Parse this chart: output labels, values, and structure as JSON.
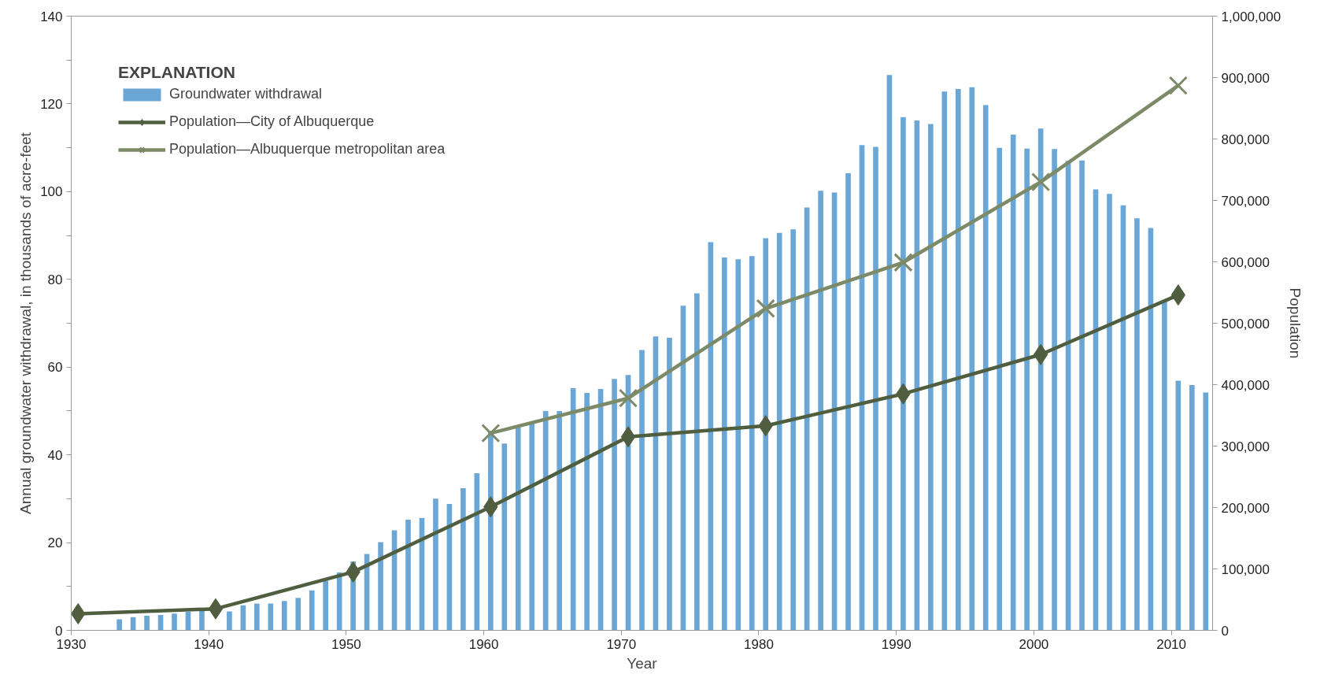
{
  "chart_data": {
    "type": "bar",
    "xlabel": "Year",
    "ylabel": "Annual groundwater withdrawal, in thousands of acre-feet",
    "y2label": "Population",
    "legend_title": "EXPLANATION",
    "legend": "top left",
    "grid": false,
    "xlim": [
      1930,
      2013
    ],
    "xticks": [
      1930,
      1940,
      1950,
      1960,
      1970,
      1980,
      1990,
      2000,
      2010
    ],
    "ylim": [
      0,
      140
    ],
    "yticks": [
      0,
      {
        "value": 10,
        "label": null
      },
      20,
      {
        "value": 30,
        "label": null
      },
      40,
      {
        "value": 50,
        "label": null
      },
      60,
      {
        "value": 70,
        "label": null
      },
      80,
      {
        "value": 90,
        "label": null
      },
      100,
      {
        "value": 110,
        "label": null
      },
      120,
      {
        "value": 130,
        "label": null
      },
      140
    ],
    "y2lim": [
      0,
      1000000
    ],
    "y2ticks": [
      {
        "value": 0,
        "label": "0"
      },
      {
        "value": 100000,
        "label": "100,000"
      },
      {
        "value": 200000,
        "label": "200,000"
      },
      {
        "value": 300000,
        "label": "300,000"
      },
      {
        "value": 400000,
        "label": "400,000"
      },
      {
        "value": 500000,
        "label": "500,000"
      },
      {
        "value": 600000,
        "label": "600,000"
      },
      {
        "value": 700000,
        "label": "700,000"
      },
      {
        "value": 800000,
        "label": "800,000"
      },
      {
        "value": 900000,
        "label": "900,000"
      },
      {
        "value": 1000000,
        "label": "1,000,000"
      }
    ],
    "series": [
      {
        "name": "Groundwater withdrawal",
        "color": "#6aa6d6",
        "x": [
          1933.5,
          1934.5,
          1935.5,
          1936.5,
          1937.5,
          1938.5,
          1939.5,
          1940.5,
          1941.5,
          1942.5,
          1943.5,
          1944.5,
          1945.5,
          1946.5,
          1947.5,
          1948.5,
          1949.5,
          1950.5,
          1951.5,
          1952.5,
          1953.5,
          1954.5,
          1955.5,
          1956.5,
          1957.5,
          1958.5,
          1959.5,
          1960.5,
          1961.5,
          1962.5,
          1963.5,
          1964.5,
          1965.5,
          1966.5,
          1967.5,
          1968.5,
          1969.5,
          1970.5,
          1971.5,
          1972.5,
          1973.5,
          1974.5,
          1975.5,
          1976.5,
          1977.5,
          1978.5,
          1979.5,
          1980.5,
          1981.5,
          1982.5,
          1983.5,
          1984.5,
          1985.5,
          1986.5,
          1987.5,
          1988.5,
          1989.5,
          1990.5,
          1991.5,
          1992.5,
          1993.5,
          1994.5,
          1995.5,
          1996.5,
          1997.5,
          1998.5,
          1999.5,
          2000.5,
          2001.5,
          2002.5,
          2003.5,
          2004.5,
          2005.5,
          2006.5,
          2007.5,
          2008.5,
          2009.5,
          2010.5,
          2011.5,
          2012.5
        ],
        "values": [
          2.5,
          3,
          3.3,
          3.5,
          3.8,
          4.2,
          4.5,
          null,
          4.3,
          5.7,
          6.1,
          6.1,
          6.7,
          7.4,
          9.1,
          11.3,
          13.2,
          15.7,
          17.4,
          20.1,
          22.8,
          25.2,
          25.6,
          30,
          28.8,
          32.4,
          35.8,
          45.5,
          42.6,
          46.2,
          47.5,
          50,
          50,
          55.2,
          54.1,
          55,
          57.3,
          58.2,
          63.9,
          67,
          66.7,
          74,
          76.8,
          88.5,
          85,
          84.6,
          85.3,
          89.4,
          90.6,
          91.4,
          96.4,
          100.2,
          99.8,
          104.2,
          110.6,
          110.2,
          126.6,
          117,
          116.2,
          115.4,
          122.8,
          123.4,
          123.8,
          119.7,
          110,
          113,
          109.8,
          114.4,
          109.7,
          107,
          107.1,
          100.5,
          99.5,
          96.9,
          93.9,
          91.7,
          75,
          56.9,
          55.9,
          54.2
        ]
      },
      {
        "name": "Population—City of Albuquerque",
        "type": "line",
        "axis": "y2",
        "color": "#4f5e3f",
        "marker": "diamond",
        "line_style": "solid",
        "x": [
          1930.5,
          1940.5,
          1950.5,
          1960.5,
          1970.5,
          1980.5,
          1990.5,
          2000.5,
          2010.5
        ],
        "values": [
          27000,
          35000,
          95000,
          201000,
          315000,
          333000,
          385000,
          449000,
          546000
        ]
      },
      {
        "name": "Population—Albuquerque metropolitan area",
        "type": "line",
        "axis": "y2",
        "color": "#7d8a67",
        "marker": "cross",
        "line_style": "solid",
        "x": [
          1960.5,
          1970.5,
          1980.5,
          1990.5,
          2000.5,
          2010.5
        ],
        "values": [
          321000,
          378000,
          524000,
          599000,
          730000,
          887000
        ]
      }
    ]
  }
}
